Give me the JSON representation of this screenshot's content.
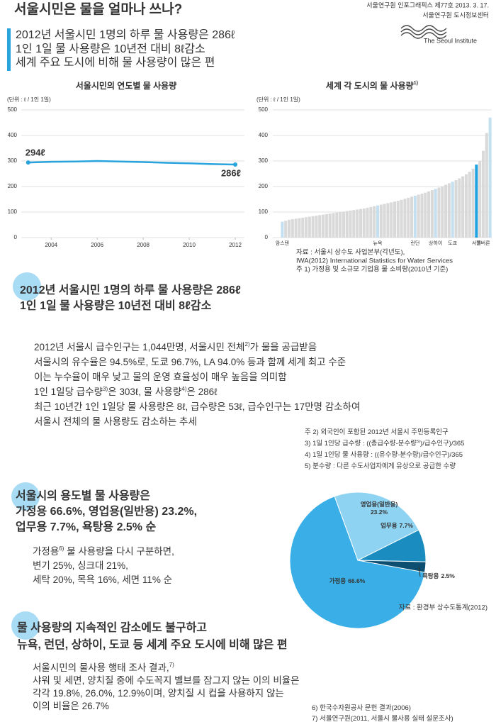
{
  "header": {
    "title": "서울시민은 물을 얼마나 쓰나?",
    "publisher": [
      "서울연구원 인포그래픽스 제77호 2013. 3. 17.",
      "서울연구원 도시정보센터",
      "The Seoul Institute"
    ],
    "subtitle": [
      "2012년 서울시민 1명의 하루 물 사용량은 286ℓ",
      "1인 1일 물 사용량은 10년전 대비 8ℓ감소",
      "세계 주요 도시에 비해 물 사용량이 많은 편"
    ]
  },
  "chart_data": [
    {
      "type": "line",
      "title": "서울시민의 연도별 물 사용량",
      "unit": "(단위 : ℓ / 1인 1일)",
      "x": [
        2003,
        2004,
        2005,
        2006,
        2007,
        2008,
        2009,
        2010,
        2011,
        2012
      ],
      "values": [
        294,
        297,
        298,
        300,
        298,
        296,
        293,
        291,
        288,
        286
      ],
      "value_labels": [
        "294ℓ",
        null,
        null,
        null,
        null,
        null,
        null,
        null,
        null,
        "286ℓ"
      ],
      "color": "#29a3dc",
      "xlim": [
        2002.7,
        2012.4
      ],
      "xticks": [
        2004,
        2006,
        2008,
        2010,
        2012
      ],
      "ylim": [
        0,
        500
      ],
      "yticks": [
        0,
        100,
        200,
        300,
        400,
        500
      ],
      "grid": true
    },
    {
      "type": "bar",
      "title": "세계 각 도시의 물 사용량",
      "title_note": "1)",
      "unit": "(단위 : ℓ / 1인 1일)",
      "categories": [
        "암스텐",
        null,
        null,
        null,
        null,
        null,
        null,
        null,
        null,
        null,
        null,
        null,
        null,
        null,
        null,
        null,
        null,
        null,
        null,
        null,
        null,
        null,
        null,
        null,
        null,
        null,
        null,
        null,
        "뉴욕",
        null,
        null,
        null,
        null,
        null,
        null,
        null,
        null,
        null,
        null,
        "런던",
        null,
        null,
        null,
        null,
        null,
        "상하이",
        null,
        null,
        null,
        null,
        "도쿄",
        null,
        null,
        null,
        null,
        null,
        null,
        "서울",
        null,
        null,
        null,
        "멜버른"
      ],
      "values": [
        62,
        66,
        70,
        72,
        74,
        76,
        78,
        80,
        82,
        84,
        86,
        88,
        90,
        92,
        94,
        96,
        98,
        100,
        102,
        104,
        106,
        108,
        110,
        112,
        114,
        117,
        120,
        123,
        126,
        129,
        132,
        135,
        138,
        141,
        144,
        148,
        152,
        156,
        160,
        164,
        168,
        172,
        176,
        181,
        186,
        191,
        196,
        201,
        207,
        213,
        219,
        225,
        232,
        240,
        248,
        258,
        270,
        286,
        300,
        340,
        410,
        470
      ],
      "colors": [
        "#c4dff0",
        "#d9d9d9",
        "#d9d9d9",
        "#d9d9d9",
        "#d9d9d9",
        "#d9d9d9",
        "#d9d9d9",
        "#d9d9d9",
        "#d9d9d9",
        "#d9d9d9",
        "#d9d9d9",
        "#d9d9d9",
        "#d9d9d9",
        "#d9d9d9",
        "#d9d9d9",
        "#d9d9d9",
        "#d9d9d9",
        "#d9d9d9",
        "#d9d9d9",
        "#d9d9d9",
        "#d9d9d9",
        "#d9d9d9",
        "#d9d9d9",
        "#d9d9d9",
        "#d9d9d9",
        "#d9d9d9",
        "#d9d9d9",
        "#d9d9d9",
        "#c4dff0",
        "#d9d9d9",
        "#d9d9d9",
        "#d9d9d9",
        "#d9d9d9",
        "#d9d9d9",
        "#d9d9d9",
        "#d9d9d9",
        "#d9d9d9",
        "#d9d9d9",
        "#d9d9d9",
        "#c4dff0",
        "#d9d9d9",
        "#d9d9d9",
        "#d9d9d9",
        "#d9d9d9",
        "#d9d9d9",
        "#c4dff0",
        "#d9d9d9",
        "#d9d9d9",
        "#d9d9d9",
        "#d9d9d9",
        "#c4dff0",
        "#d9d9d9",
        "#d9d9d9",
        "#d9d9d9",
        "#d9d9d9",
        "#d9d9d9",
        "#d9d9d9",
        "#1fa3e0",
        "#d9d9d9",
        "#d9d9d9",
        "#d9d9d9",
        "#c4dff0"
      ],
      "ylim": [
        0,
        500
      ],
      "yticks": [
        0,
        100,
        200,
        300,
        400,
        500
      ],
      "grid": true,
      "source": [
        "자료 : 서울시 상수도 사업본부(각년도),",
        "IWA(2012) International Statistics for Water Services",
        "주  1) 가정용 및 소규모 기업용 물 소비량(2010년 기준)"
      ]
    },
    {
      "type": "pie",
      "categories": [
        "가정용",
        "영업용(일반용)",
        "업무용",
        "욕탕용"
      ],
      "values": [
        66.6,
        23.2,
        7.7,
        2.5
      ],
      "value_labels": [
        "66.6%",
        "23.2%",
        "7.7%",
        "2.5%"
      ],
      "colors": [
        "#3aaee6",
        "#8fd3f2",
        "#1a8cc0",
        "#0d4f70"
      ],
      "source": "자료 : 환경부 상수도통계(2012)"
    }
  ],
  "sections": [
    {
      "heading": [
        "2012년 서울시민 1명의 하루 물 사용량은 286ℓ",
        "1인 1일 물 사용량은 10년전 대비 8ℓ감소"
      ],
      "body": [
        [
          "2012년 서울시 급수인구는 1,044만명, 서울시민 전체",
          "2)",
          "가 물을 공급받음"
        ],
        [
          "서울시의 유수율은 94.5%로, 도쿄 96.7%, LA 94.0% 등과 함께 세계 최고 수준"
        ],
        [
          "이는 누수율이 매우 낮고 물의 운영 효율성이 매우 높음을 의미함"
        ],
        [
          "1인 1일당 급수량",
          "3)",
          "은 303ℓ, 물 사용량",
          "4)",
          "은 286ℓ"
        ],
        [
          "최근 10년간 1인 1일당 물 사용량은 8ℓ, 급수량은 53ℓ, 급수인구는 17만명 감소하여"
        ],
        [
          "서울시 전체의 물 사용량도 감소하는 추세"
        ]
      ],
      "notes": [
        [
          "주  2) 외국인이 포함된 2012년 서울시 주민등록인구"
        ],
        [
          "3) 1일 1인당 급수량 : ((총급수량-분수량",
          "5)",
          ")/급수인구)/365"
        ],
        [
          "4) 1일 1인당 물 사용량 : ((유수량-분수량)/급수인구)/365"
        ],
        [
          "5) 분수량 : 다른 수도사업자에게 유상으로 공급한 수량"
        ]
      ]
    },
    {
      "heading": [
        "서울시의 용도별 물 사용량은",
        "가정용 66.6%, 영업용(일반용) 23.2%,",
        "업무용 7.7%, 욕탕용 2.5% 순"
      ],
      "body": [
        [
          "가정용",
          "6)",
          " 물 사용량을 다시 구분하면,"
        ],
        [
          "변기 25%, 싱크대 21%,"
        ],
        [
          "세탁 20%, 목욕 16%, 세면 11% 순"
        ]
      ],
      "notes": []
    },
    {
      "heading": [
        "물 사용량의 지속적인 감소에도 불구하고",
        "뉴욕, 런던, 상하이, 도쿄 등 세계 주요 도시에 비해 많은 편"
      ],
      "body": [
        [
          "서울시민의 물사용 행태 조사 결과,",
          "7)"
        ],
        [
          "샤워 및 세면, 양치질 중에 수도꼭지 벨브를 잠그지 않는 이의 비율은"
        ],
        [
          "각각 19.8%, 26.0%, 12.9%이며, 양치질 시 컵을 사용하지 않는"
        ],
        [
          "이의 비율은 26.7%"
        ]
      ],
      "notes": [
        [
          "6) 한국수자원공사 문헌 결과(2006)"
        ],
        [
          "7) 서울연구원(2011, 서울시 물사용 실태 설문조사)"
        ]
      ]
    }
  ]
}
